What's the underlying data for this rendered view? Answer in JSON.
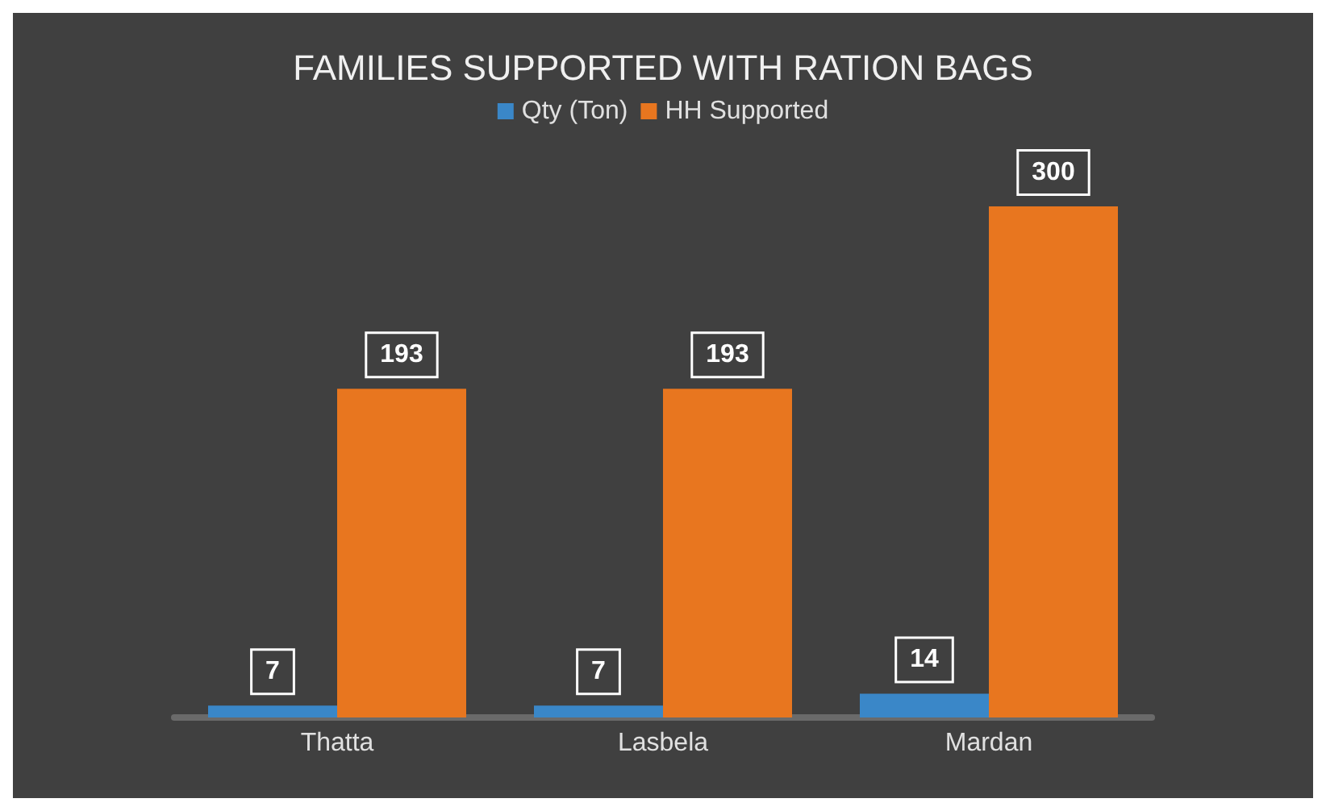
{
  "chart_data": {
    "type": "bar",
    "title": "FAMILIES SUPPORTED WITH RATION BAGS",
    "categories": [
      "Thatta",
      "Lasbela",
      "Mardan"
    ],
    "series": [
      {
        "name": "Qty (Ton)",
        "color": "#3a87c8",
        "values": [
          7,
          7,
          14
        ]
      },
      {
        "name": "HH Supported",
        "color": "#e8761f",
        "values": [
          193,
          193,
          300
        ]
      }
    ],
    "data_labels": true,
    "legend": "top",
    "grid": false
  }
}
